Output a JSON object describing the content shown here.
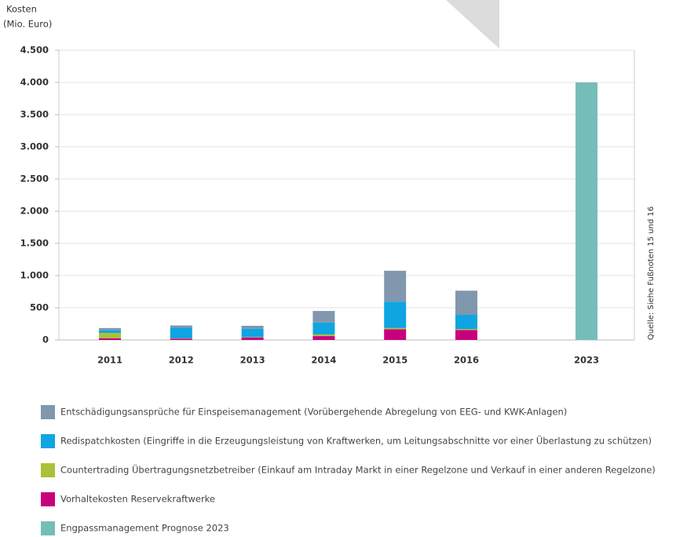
{
  "chart_data": {
    "type": "stacked-bar",
    "y_label": [
      "Kosten",
      "(Mio. Euro)"
    ],
    "source": "Quelle: Siehe Fußnoten 15 und 16",
    "categories": [
      "2011",
      "2012",
      "2013",
      "2014",
      "2015",
      "2016",
      "2023"
    ],
    "series": [
      {
        "name": "Entschädigungsansprüche für Einspeisemanagement (Vorübergehende Abregelung von EEG- und KWK-Anlagen)",
        "color": "#8097ae",
        "values": [
          35,
          35,
          45,
          180,
          480,
          375,
          null
        ]
      },
      {
        "name": "Redispatchkosten (Eingriffe in die Erzeugungsleistung von Kraftwerken, um Leitungsabschnitte vor einer Überlastung zu schützen)",
        "color": "#0ea5e2",
        "values": [
          40,
          165,
          130,
          185,
          410,
          220,
          null
        ]
      },
      {
        "name": "Countertrading Übertragungsnetzbetreiber (Einkauf am Intraday Markt in einer Regelzone und Verkauf in einer anderen Regelzone)",
        "color": "#a9c23a",
        "values": [
          85,
          5,
          5,
          25,
          20,
          15,
          null
        ]
      },
      {
        "name": "Vorhaltekosten Reservekraftwerke",
        "color": "#c8007e",
        "values": [
          25,
          20,
          40,
          60,
          165,
          155,
          null
        ]
      },
      {
        "name": "Engpassmanagement Prognose 2023",
        "color": "#75bdb9",
        "values": [
          null,
          null,
          null,
          null,
          null,
          null,
          4000
        ]
      }
    ],
    "ylim": [
      0,
      4500
    ],
    "yticks": [
      0,
      500,
      {
        "value": 1000,
        "label": "1.000"
      },
      {
        "value": 1500,
        "label": "1.500"
      },
      {
        "value": 2000,
        "label": "2.000"
      },
      {
        "value": 2500,
        "label": "2.500"
      },
      {
        "value": 3000,
        "label": "3.000"
      },
      {
        "value": 3500,
        "label": "3.500"
      },
      {
        "value": 4000,
        "label": "4.000"
      },
      {
        "value": 4500,
        "label": "4.500"
      }
    ],
    "grid": true
  }
}
